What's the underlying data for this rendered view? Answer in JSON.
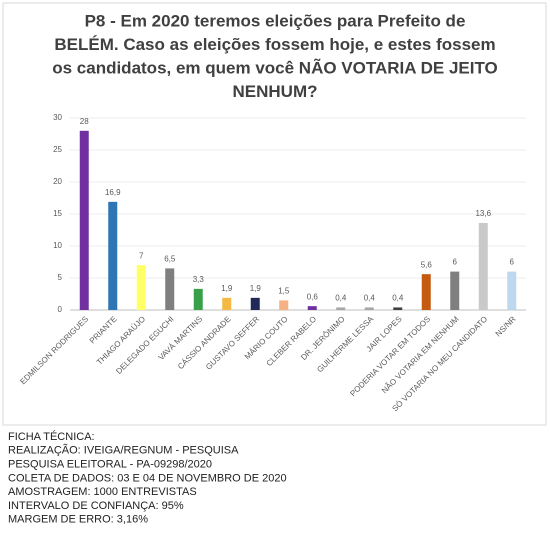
{
  "chart_data": {
    "type": "bar",
    "title": [
      "P8 - Em 2020 teremos eleições para Prefeito de",
      "BELÉM. Caso as eleições fossem hoje, e estes fossem",
      "os candidatos, em quem você NÃO VOTARIA DE JEITO",
      "NENHUM?"
    ],
    "categories": [
      "EDMILSON RODRIGUES",
      "PRIANTE",
      "THIAGO ARAÚJO",
      "DELEGADO EGUCHI",
      "VAVÁ MARTINS",
      "CÁSSIO ANDRADE",
      "GUSTAVO SEFFER",
      "MÁRIO COUTO",
      "CLEBER RABELO",
      "DR. JERÔNIMO",
      "GUILHERME LESSA",
      "JAIR LOPES",
      "PODERIA VOTAR EM TODOS",
      "NÃO VOTARIA EM NENHUM",
      "SÓ VOTARIA NO MEU CANDIDATO",
      "NS/NR"
    ],
    "values": [
      28,
      16.9,
      7,
      6.5,
      3.3,
      1.9,
      1.9,
      1.5,
      0.6,
      0.4,
      0.4,
      0.4,
      5.6,
      6,
      13.6,
      6
    ],
    "value_labels": [
      "28",
      "16,9",
      "7",
      "6,5",
      "3,3",
      "1,9",
      "1,9",
      "1,5",
      "0,6",
      "0,4",
      "0,4",
      "0,4",
      "5,6",
      "6",
      "13,6",
      "6"
    ],
    "colors": [
      "#7030a0",
      "#2e75b6",
      "#ffff66",
      "#7f7f7f",
      "#38a048",
      "#f4b942",
      "#1f2a5a",
      "#f4b183",
      "#7030a0",
      "#a6a6a6",
      "#a6a6a6",
      "#404040",
      "#c55a11",
      "#7f7f7f",
      "#c9c9c9",
      "#bdd7ee"
    ],
    "ylim": [
      0,
      30
    ],
    "yticks": [
      0,
      5,
      10,
      15,
      20,
      25,
      30
    ],
    "grid": true
  },
  "footer": [
    "FICHA TÉCNICA:",
    "REALIZAÇÃO: IVEIGA/REGNUM - PESQUISA",
    "PESQUISA ELEITORAL - PA-09298/2020",
    "COLETA DE DADOS: 03 E 04 DE NOVEMBRO DE 2020",
    "AMOSTRAGEM: 1000 ENTREVISTAS",
    "INTERVALO DE CONFIANÇA: 95%",
    "MARGEM DE ERRO: 3,16%"
  ]
}
